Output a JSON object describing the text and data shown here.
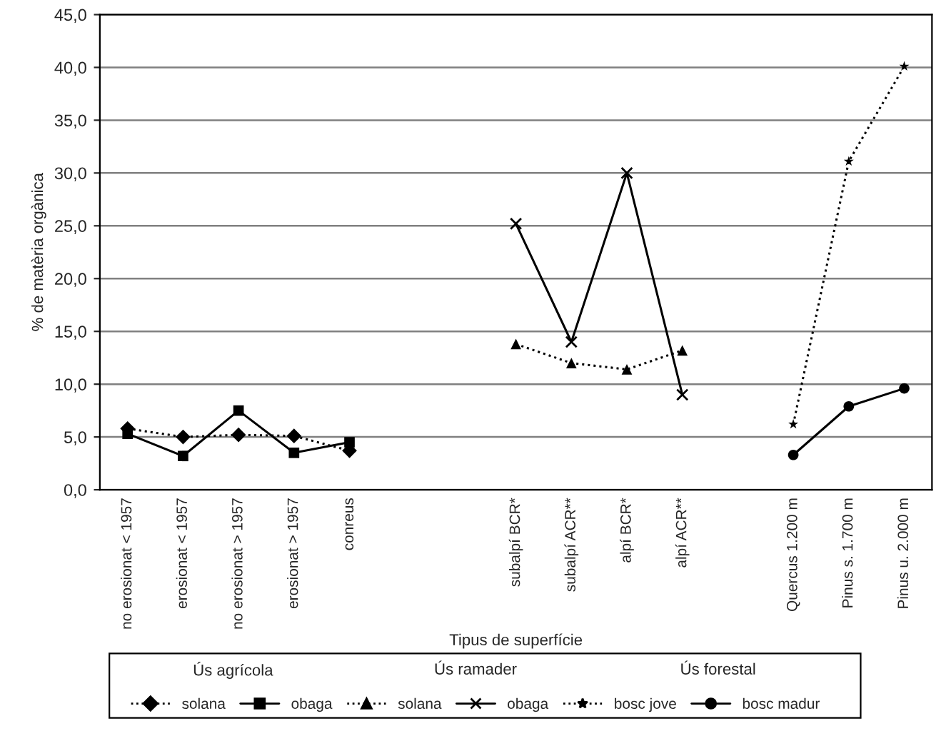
{
  "chart_data": {
    "type": "line",
    "xlabel": "Tipus de superfície",
    "ylabel": "% de matèria orgànica",
    "categories": [
      "no erosionat < 1957",
      "erosionat < 1957",
      "no erosionat > 1957",
      "erosionat > 1957",
      "conreus",
      null,
      null,
      "subalpí BCR*",
      "subalpí ACR**",
      "alpí BCR*",
      "alpí ACR**",
      null,
      "Quercus 1.200 m",
      "Pinus s. 1.700 m",
      "Pinus u. 2.000 m"
    ],
    "ylim": [
      0,
      45
    ],
    "yticks": [
      {
        "value": 0,
        "label": "0,0"
      },
      {
        "value": 5,
        "label": "5,0"
      },
      {
        "value": 10,
        "label": "10,0"
      },
      {
        "value": 15,
        "label": "15,0"
      },
      {
        "value": 20,
        "label": "20,0"
      },
      {
        "value": 25,
        "label": "25,0"
      },
      {
        "value": 30,
        "label": "30,0"
      },
      {
        "value": 35,
        "label": "35,0"
      },
      {
        "value": 40,
        "label": "40,0"
      },
      {
        "value": 45,
        "label": "45,0"
      }
    ],
    "grid": "y",
    "legend": "bottom",
    "annotations": [
      "Ús agrícola",
      "Ús ramader",
      "Ús forestal"
    ],
    "series": [
      {
        "name": "solana",
        "color": "#000000",
        "marker": "diamond",
        "line_style": "dotted",
        "values": [
          5.8,
          5.0,
          5.2,
          5.1,
          3.7,
          null,
          null,
          null,
          null,
          null,
          null,
          null,
          null,
          null,
          null
        ]
      },
      {
        "name": "obaga",
        "color": "#000000",
        "marker": "square",
        "line_style": "solid",
        "values": [
          5.3,
          3.2,
          7.5,
          3.5,
          4.5,
          null,
          null,
          null,
          null,
          null,
          null,
          null,
          null,
          null,
          null
        ]
      },
      {
        "name": "solana",
        "color": "#000000",
        "marker": "triangle",
        "line_style": "dotted",
        "values": [
          null,
          null,
          null,
          null,
          null,
          null,
          null,
          13.8,
          12.0,
          11.4,
          13.2,
          null,
          null,
          null,
          null
        ]
      },
      {
        "name": "obaga",
        "color": "#000000",
        "marker": "cross",
        "line_style": "solid",
        "values": [
          null,
          null,
          null,
          null,
          null,
          null,
          null,
          25.2,
          14.0,
          30.0,
          9.0,
          null,
          null,
          null,
          null
        ]
      },
      {
        "name": "bosc jove",
        "color": "#000000",
        "marker": "star",
        "line_style": "dotted",
        "values": [
          null,
          null,
          null,
          null,
          null,
          null,
          null,
          null,
          null,
          null,
          null,
          null,
          6.2,
          31.1,
          40.1
        ]
      },
      {
        "name": "bosc madur",
        "color": "#000000",
        "marker": "circle",
        "line_style": "solid",
        "values": [
          null,
          null,
          null,
          null,
          null,
          null,
          null,
          null,
          null,
          null,
          null,
          null,
          3.3,
          7.9,
          9.6
        ]
      }
    ]
  }
}
